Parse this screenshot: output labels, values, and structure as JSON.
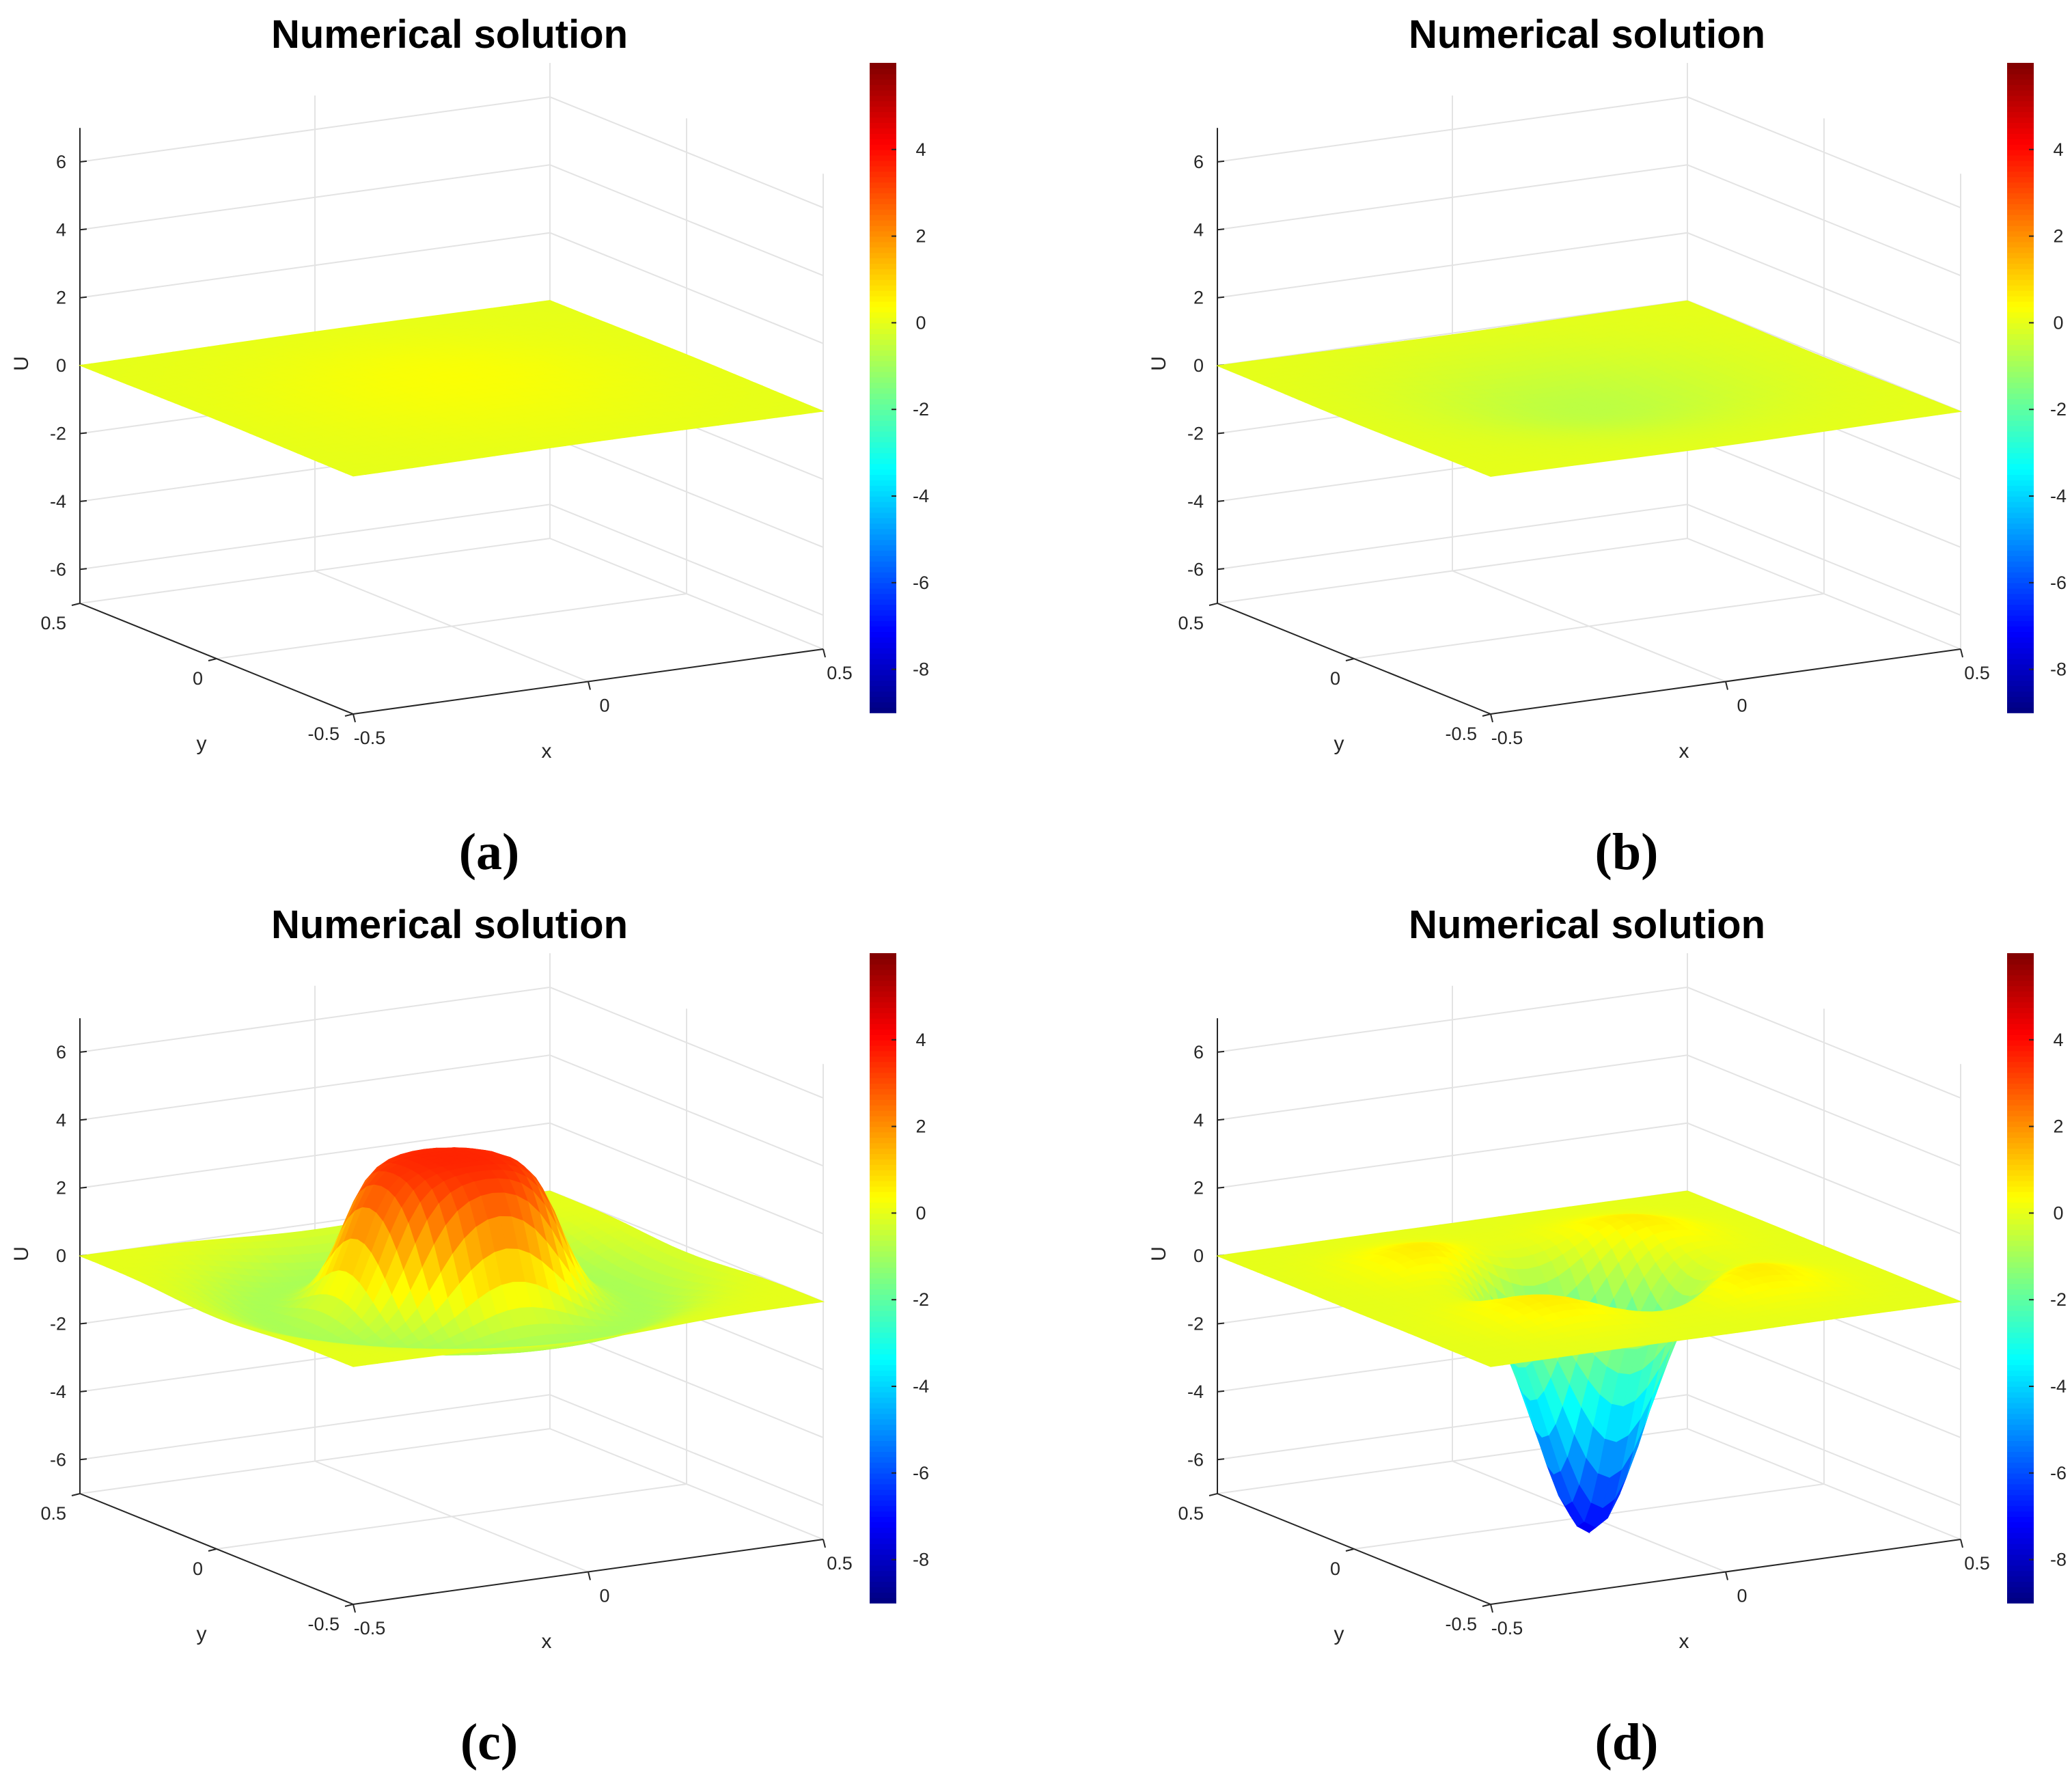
{
  "chart_data": [
    {
      "id": "a",
      "type": "surface",
      "caption": "(a)",
      "title": "Numerical solution",
      "xlabel": "x",
      "ylabel": "y",
      "zlabel": "U",
      "xlim": [
        -0.5,
        0.5
      ],
      "ylim": [
        -0.5,
        0.5
      ],
      "zlim": [
        -7,
        7
      ],
      "x_ticks": [
        -0.5,
        0,
        0.5
      ],
      "y_ticks": [
        -0.5,
        0,
        0.5
      ],
      "z_ticks": [
        -6,
        -4,
        -2,
        0,
        2,
        4,
        6
      ],
      "colorbar": {
        "colormap": "jet",
        "range": [
          -9,
          6
        ],
        "ticks": [
          -8,
          -6,
          -4,
          -2,
          0,
          2,
          4
        ]
      },
      "surface": {
        "shape": "gaussian",
        "amplitude": 0.3,
        "sigma": 0.25,
        "offset": 0
      }
    },
    {
      "id": "b",
      "type": "surface",
      "caption": "(b)",
      "title": "Numerical solution",
      "xlabel": "x",
      "ylabel": "y",
      "zlabel": "U",
      "xlim": [
        -0.5,
        0.5
      ],
      "ylim": [
        -0.5,
        0.5
      ],
      "zlim": [
        -7,
        7
      ],
      "x_ticks": [
        -0.5,
        0,
        0.5
      ],
      "y_ticks": [
        -0.5,
        0,
        0.5
      ],
      "z_ticks": [
        -6,
        -4,
        -2,
        0,
        2,
        4,
        6
      ],
      "colorbar": {
        "colormap": "jet",
        "range": [
          -9,
          6
        ],
        "ticks": [
          -8,
          -6,
          -4,
          -2,
          0,
          2,
          4
        ]
      },
      "surface": {
        "shape": "gaussian",
        "amplitude": -0.6,
        "sigma": 0.22,
        "offset": 0
      }
    },
    {
      "id": "c",
      "type": "surface",
      "caption": "(c)",
      "title": "Numerical solution",
      "xlabel": "x",
      "ylabel": "y",
      "zlabel": "U",
      "xlim": [
        -0.5,
        0.5
      ],
      "ylim": [
        -0.5,
        0.5
      ],
      "zlim": [
        -7,
        7
      ],
      "x_ticks": [
        -0.5,
        0,
        0.5
      ],
      "y_ticks": [
        -0.5,
        0,
        0.5
      ],
      "z_ticks": [
        -6,
        -4,
        -2,
        0,
        2,
        4,
        6
      ],
      "colorbar": {
        "colormap": "jet",
        "range": [
          -9,
          6
        ],
        "ticks": [
          -8,
          -6,
          -4,
          -2,
          0,
          2,
          4
        ]
      },
      "surface": {
        "shape": "plateau",
        "amplitude": 3.6,
        "radius": 0.2,
        "edge": 0.06,
        "ring_amplitude": -0.9,
        "ring_radius": 0.34,
        "ring_width": 0.09
      }
    },
    {
      "id": "d",
      "type": "surface",
      "caption": "(d)",
      "title": "Numerical solution",
      "xlabel": "x",
      "ylabel": "y",
      "zlabel": "U",
      "xlim": [
        -0.5,
        0.5
      ],
      "ylim": [
        -0.5,
        0.5
      ],
      "zlim": [
        -7,
        7
      ],
      "x_ticks": [
        -0.5,
        0,
        0.5
      ],
      "y_ticks": [
        -0.5,
        0,
        0.5
      ],
      "z_ticks": [
        -6,
        -4,
        -2,
        0,
        2,
        4,
        6
      ],
      "colorbar": {
        "colormap": "jet",
        "range": [
          -9,
          6
        ],
        "ticks": [
          -8,
          -6,
          -4,
          -2,
          0,
          2,
          4
        ]
      },
      "surface": {
        "shape": "well",
        "amplitude": -7.5,
        "sigma": 0.1,
        "bumps": 4,
        "bump_amplitude": 0.7,
        "bump_radius": 0.3,
        "bump_sigma": 0.1
      }
    }
  ]
}
